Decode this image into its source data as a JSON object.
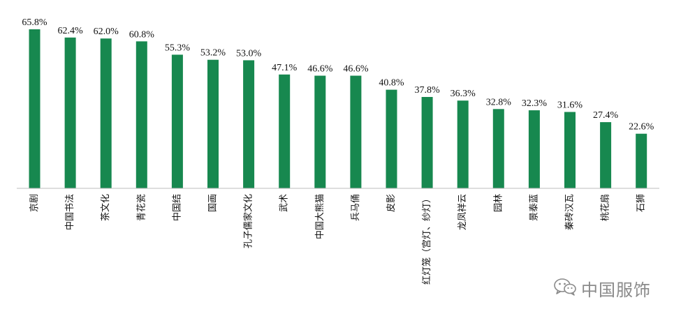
{
  "chart_data": {
    "type": "bar",
    "title": "",
    "xlabel": "",
    "ylabel": "",
    "ylim": [
      0,
      66
    ],
    "grid": false,
    "bar_color": "#17884f",
    "axis_color": "#bdbdbd",
    "categories": [
      "京剧",
      "中国书法",
      "茶文化",
      "青花瓷",
      "中国结",
      "国画",
      "孔子儒家文化",
      "武术",
      "中国大熊猫",
      "兵马俑",
      "皮影",
      "红灯笼（宫灯、纱灯）",
      "龙凤祥云",
      "园林",
      "景泰蓝",
      "秦砖汉瓦",
      "桃花扇",
      "石狮"
    ],
    "values": [
      65.8,
      62.4,
      62.0,
      60.8,
      55.3,
      53.2,
      53.0,
      47.1,
      46.6,
      46.6,
      40.8,
      37.8,
      36.3,
      32.8,
      32.3,
      31.6,
      27.4,
      22.6
    ],
    "data_labels": [
      "65.8%",
      "62.4%",
      "62.0%",
      "60.8%",
      "55.3%",
      "53.2%",
      "53.0%",
      "47.1%",
      "46.6%",
      "46.6%",
      "40.8%",
      "37.8%",
      "36.3%",
      "32.8%",
      "32.3%",
      "31.6%",
      "27.4%",
      "22.6%"
    ]
  },
  "watermark": {
    "icon": "wechat-icon",
    "text": "中国服饰",
    "color": "#8a8a8a"
  }
}
